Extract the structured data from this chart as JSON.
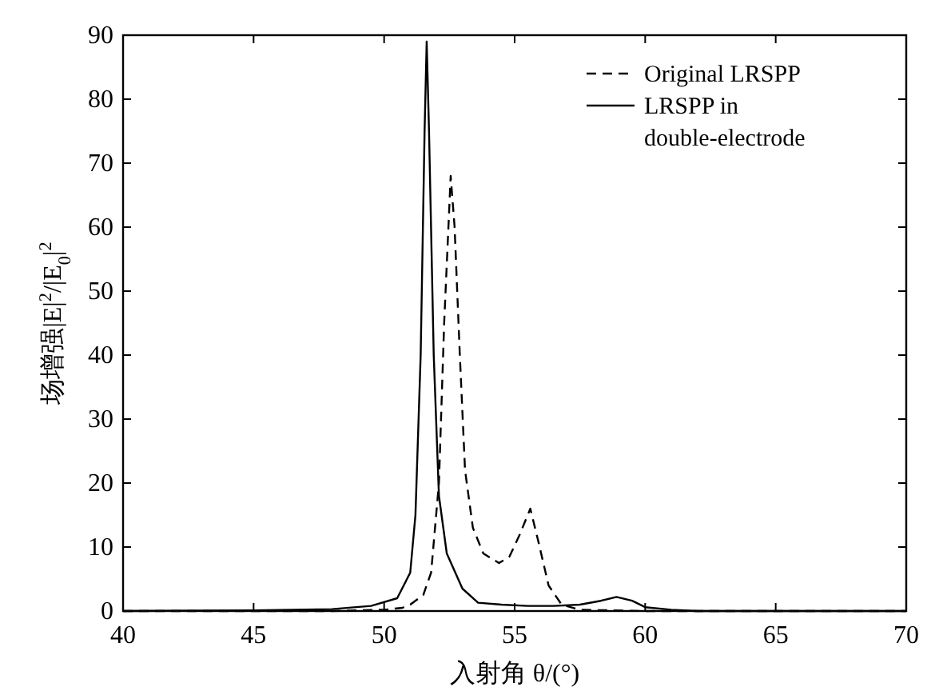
{
  "chart_data": {
    "type": "line",
    "xlabel": "入射角 θ/(°)",
    "ylabel": "场增强|E|$^{2}$/|E$_{0}$|$^{2}$",
    "xlim": [
      40,
      70
    ],
    "ylim": [
      0,
      90
    ],
    "xticks": [
      40,
      45,
      50,
      55,
      60,
      65,
      70
    ],
    "yticks": [
      0,
      10,
      20,
      30,
      40,
      50,
      60,
      70,
      80,
      90
    ],
    "legend": "top right",
    "grid": false,
    "series": [
      {
        "name": "Original LRSPP",
        "color": "#000000",
        "line_style": "dashed",
        "x": [
          40,
          48,
          50,
          50.7,
          51,
          51.5,
          51.8,
          52.1,
          52.3,
          52.55,
          52.7,
          52.9,
          53.1,
          53.4,
          53.8,
          54.4,
          54.8,
          55.2,
          55.6,
          55.9,
          56.3,
          56.8,
          57.5,
          60,
          70
        ],
        "values": [
          0,
          0,
          0.2,
          0.5,
          1,
          2.5,
          6,
          20,
          45,
          68,
          60,
          40,
          22,
          13,
          9,
          7.5,
          8.5,
          12,
          16,
          11,
          4,
          1,
          0.2,
          0,
          0
        ]
      },
      {
        "name": "LRSPP in double-electrode",
        "color": "#000000",
        "line_style": "solid",
        "x": [
          40,
          45,
          48,
          49.5,
          50.5,
          51,
          51.2,
          51.4,
          51.55,
          51.63,
          51.72,
          51.9,
          52.1,
          52.4,
          53,
          53.6,
          54.5,
          55.5,
          56.5,
          57.5,
          58.3,
          58.9,
          59.5,
          60,
          61,
          62,
          70
        ],
        "values": [
          0,
          0.1,
          0.3,
          0.8,
          2,
          6,
          15,
          40,
          75,
          89,
          75,
          40,
          18,
          9,
          3.5,
          1.3,
          1,
          0.8,
          0.8,
          1,
          1.6,
          2.2,
          1.6,
          0.6,
          0.2,
          0,
          0
        ]
      }
    ]
  }
}
